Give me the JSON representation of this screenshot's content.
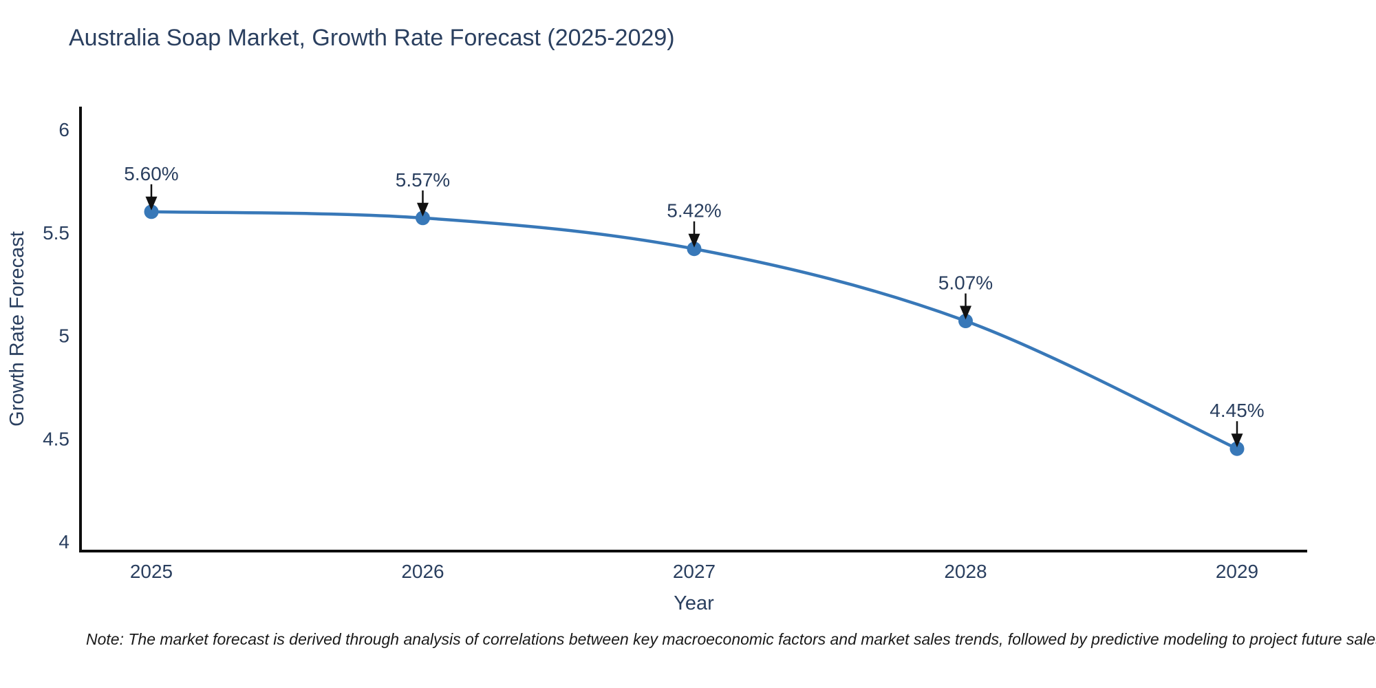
{
  "chart": {
    "note": "Note: The market forecast is derived through analysis of correlations between key macroeconomic factors and market sales trends, followed by predictive modeling to project future sales"
  },
  "chart_data": {
    "type": "line",
    "title": "Australia Soap Market, Growth Rate Forecast (2025-2029)",
    "xlabel": "Year",
    "ylabel": "Growth Rate Forecast",
    "categories": [
      "2025",
      "2026",
      "2027",
      "2028",
      "2029"
    ],
    "values": [
      5.6,
      5.57,
      5.42,
      5.07,
      4.45
    ],
    "point_labels": [
      "5.60%",
      "5.57%",
      "5.42%",
      "5.07%",
      "4.45%"
    ],
    "ylim": [
      4,
      6
    ],
    "yticks": [
      4,
      4.5,
      5,
      5.5,
      6
    ],
    "ytick_labels": [
      "4",
      "4.5",
      "5",
      "5.5",
      "6"
    ],
    "grid": false,
    "legend": "none",
    "line_shape": "spline",
    "line_color": "#3878b8",
    "marker_color": "#3878b8",
    "axis_color": "#0d0d0d",
    "text_color": "#2a3f5f",
    "arrow_color": "#111111"
  }
}
